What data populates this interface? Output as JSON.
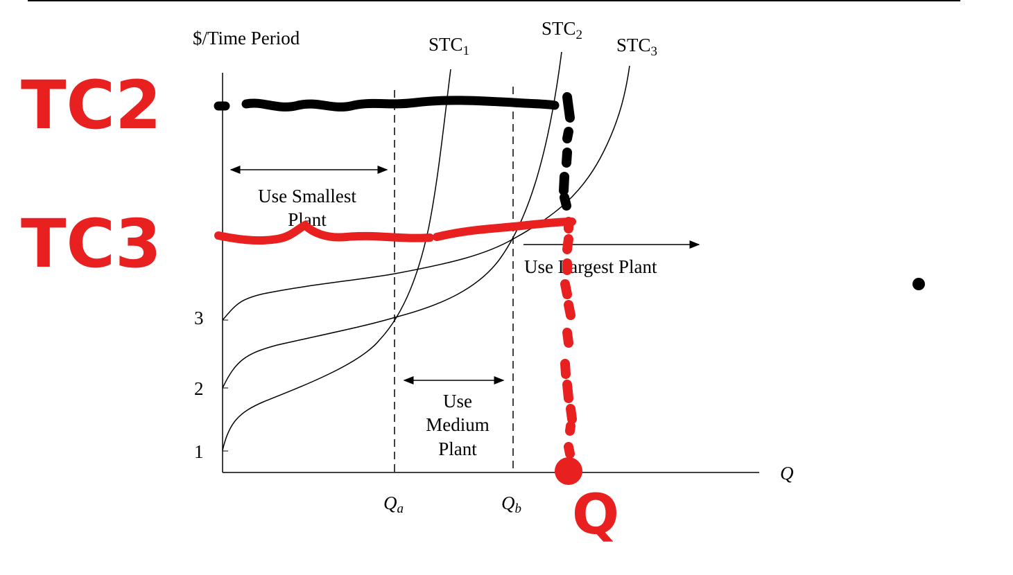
{
  "axis": {
    "y_label": "$/Time Period",
    "x_label": "Q",
    "ticks": [
      "3",
      "2",
      "1"
    ]
  },
  "curves": [
    {
      "label": "STC",
      "sub": "1"
    },
    {
      "label": "STC",
      "sub": "2"
    },
    {
      "label": "STC",
      "sub": "3"
    }
  ],
  "quantities": [
    {
      "label": "Q",
      "sub": "a"
    },
    {
      "label": "Q",
      "sub": "b"
    }
  ],
  "regions": [
    [
      "Use Smallest",
      "Plant"
    ],
    [
      "Use",
      "Medium",
      "Plant"
    ],
    [
      "Use Largest Plant"
    ]
  ],
  "annotations": [
    "TC2",
    "TC3",
    "Q"
  ]
}
